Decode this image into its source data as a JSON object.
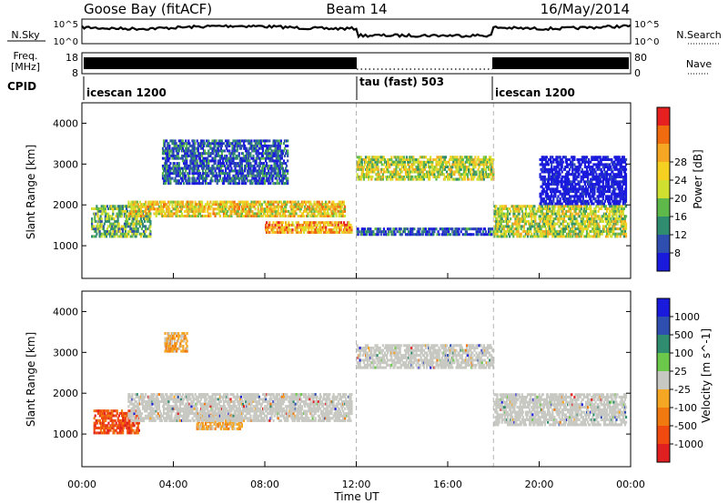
{
  "header": {
    "station": "Goose Bay (fitACF)",
    "beam": "Beam 14",
    "date": "16/May/2014"
  },
  "noise_panel": {
    "left_label": "N.Sky",
    "right_label": "N.Search",
    "left_ticks": [
      "10^5",
      "10^0"
    ],
    "right_ticks": [
      "10^5",
      "10^0"
    ]
  },
  "freq_panel": {
    "left_label_top": "Freq.",
    "left_label_unit": "[MHz]",
    "right_label": "Nave",
    "left_ticks": [
      "18",
      "8"
    ],
    "right_ticks": [
      "80",
      "0"
    ]
  },
  "cpid": {
    "label": "CPID",
    "modes": [
      {
        "name": "icescan 1200",
        "start": 0
      },
      {
        "name": "tau (fast) 503",
        "start": 12
      },
      {
        "name": "icescan 1200",
        "start": 18
      }
    ]
  },
  "x_axis": {
    "label": "Time UT",
    "ticks": [
      "00:00",
      "04:00",
      "08:00",
      "12:00",
      "16:00",
      "20:00",
      "00:00"
    ],
    "range_hours": [
      0,
      24
    ]
  },
  "colors": {
    "power": [
      "#1a1adc",
      "#2f4fb0",
      "#2f8c6e",
      "#5fb84a",
      "#cfe030",
      "#f5d020",
      "#f5a623",
      "#f06a10",
      "#e62020"
    ],
    "velocity": [
      "#e02020",
      "#f04a10",
      "#f07a10",
      "#f5a623",
      "#c8c8c2",
      "#6cc84a",
      "#2f8c6e",
      "#2f4fb0",
      "#1a1adc"
    ],
    "noise": "#000000",
    "mode_line": "#b4b4b4"
  },
  "chart_data": [
    {
      "type": "heatmap",
      "name": "power",
      "ylabel": "Slant Range [km]",
      "ylim": [
        200,
        4500
      ],
      "yticks": [
        1000,
        2000,
        3000,
        4000
      ],
      "colorbar_label": "Power [dB]",
      "colorbar_ticks": [
        "8",
        "12",
        "16",
        "20",
        "24",
        "28"
      ],
      "levels": [
        4,
        8,
        12,
        14,
        16,
        18,
        20,
        24,
        28
      ],
      "echo_regions": [
        {
          "t": [
            0.4,
            3.0
          ],
          "r": [
            1200,
            2000
          ],
          "level": 14
        },
        {
          "t": [
            2.0,
            11.5
          ],
          "r": [
            1700,
            2100
          ],
          "level": 18
        },
        {
          "t": [
            3.5,
            9.0
          ],
          "r": [
            2500,
            3600
          ],
          "level": 8
        },
        {
          "t": [
            8.0,
            11.8
          ],
          "r": [
            1300,
            1600
          ],
          "level": 20
        },
        {
          "t": [
            12.0,
            18.0
          ],
          "r": [
            2600,
            3200
          ],
          "level": 16
        },
        {
          "t": [
            12.0,
            18.0
          ],
          "r": [
            1250,
            1450
          ],
          "level": 8
        },
        {
          "t": [
            18.0,
            23.8
          ],
          "r": [
            1200,
            2000
          ],
          "level": 16
        },
        {
          "t": [
            20.0,
            23.8
          ],
          "r": [
            2000,
            3200
          ],
          "level": 6
        }
      ]
    },
    {
      "type": "heatmap",
      "name": "velocity",
      "ylabel": "Slant Range [km]",
      "ylim": [
        200,
        4500
      ],
      "yticks": [
        1000,
        2000,
        3000,
        4000
      ],
      "colorbar_label": "Velocity [m s^-1]",
      "colorbar_ticks": [
        "1000",
        "500",
        "100",
        "25",
        "-25",
        "-100",
        "-500",
        "-1000"
      ],
      "echo_regions": [
        {
          "t": [
            0.5,
            2.5
          ],
          "r": [
            1000,
            1600
          ],
          "velocity": -500
        },
        {
          "t": [
            5.0,
            7.0
          ],
          "r": [
            1100,
            1500
          ],
          "velocity": -150
        },
        {
          "t": [
            3.6,
            4.6
          ],
          "r": [
            3000,
            3500
          ],
          "velocity": -120
        },
        {
          "t": [
            2.0,
            11.8
          ],
          "r": [
            1300,
            2000
          ],
          "velocity": 0
        },
        {
          "t": [
            12.0,
            18.0
          ],
          "r": [
            2600,
            3200
          ],
          "velocity": 0
        },
        {
          "t": [
            18.0,
            23.8
          ],
          "r": [
            1200,
            2000
          ],
          "velocity": 0
        }
      ]
    }
  ]
}
